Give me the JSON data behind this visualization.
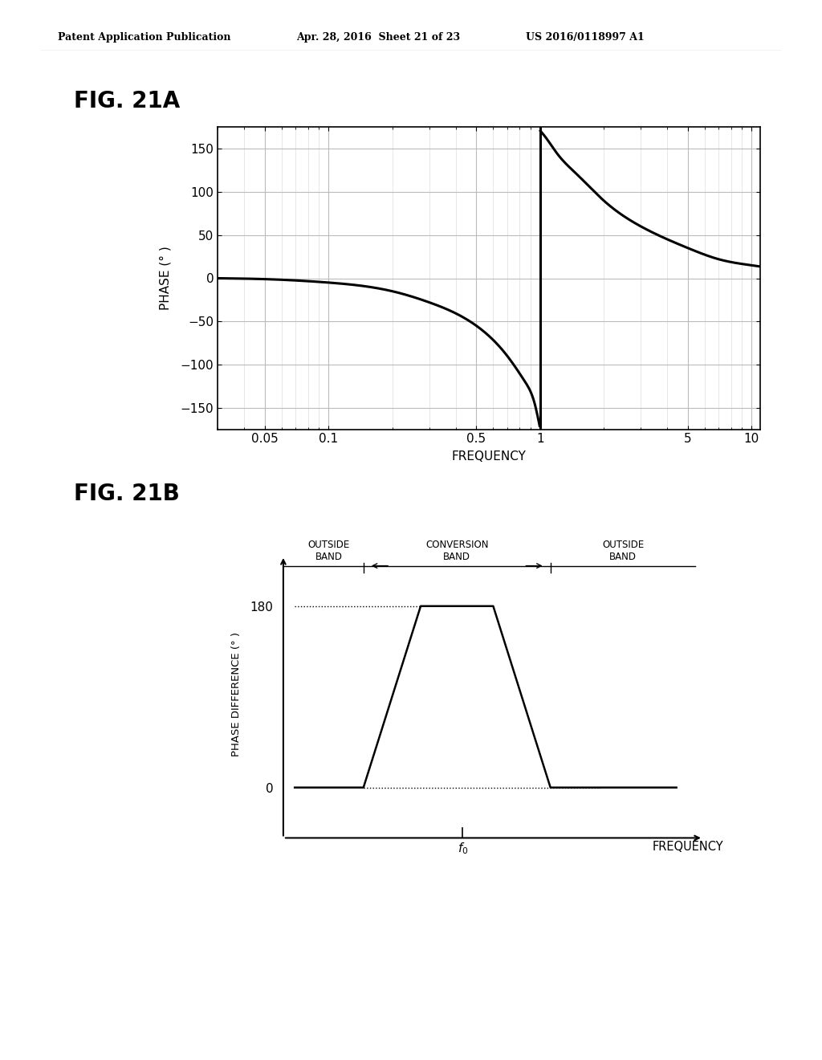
{
  "header_left": "Patent Application Publication",
  "header_mid": "Apr. 28, 2016  Sheet 21 of 23",
  "header_right": "US 2016/0118997 A1",
  "fig21a_label": "FIG. 21A",
  "fig21b_label": "FIG. 21B",
  "plot_a": {
    "ylabel": "PHASE (° )",
    "xlabel": "FREQUENCY",
    "yticks": [
      -150,
      -100,
      -50,
      0,
      50,
      100,
      150
    ],
    "xtick_labels": [
      "0.05",
      "0.1",
      "0.5",
      "1",
      "5",
      "10"
    ],
    "xtick_vals": [
      0.05,
      0.1,
      0.5,
      1.0,
      5.0,
      10.0
    ]
  },
  "plot_b": {
    "ylabel": "PHASE DIFFERENCE (° )",
    "xlabel": "FREQUENCY",
    "label_f0": "f0"
  },
  "bg_color": "#ffffff",
  "line_color": "#000000",
  "grid_color_major": "#bbbbbb",
  "grid_color_minor": "#dddddd"
}
